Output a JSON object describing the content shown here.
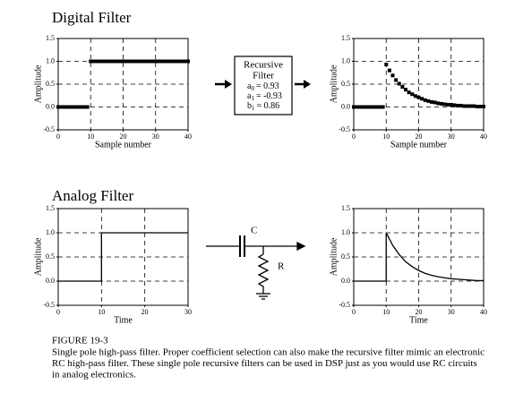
{
  "headings": [
    "Digital Filter",
    "Analog Filter"
  ],
  "filter_box": {
    "title": [
      "Recursive",
      "Filter"
    ],
    "coefficients": [
      {
        "symbol": "a",
        "subscript": "0",
        "text": "= 0.93"
      },
      {
        "symbol": "a",
        "subscript": "1",
        "text": "= -0.93"
      },
      {
        "symbol": "b",
        "subscript": "1",
        "text": "= 0.86"
      }
    ]
  },
  "circuit": {
    "capacitor": "C",
    "resistor": "R"
  },
  "caption": {
    "title": "FIGURE 19-3",
    "lines": [
      "Single pole high-pass filter.  Proper coefficient selection can also make the recursive filter mimic an electronic",
      "RC high-pass filter.  These single pole recursive filters can be used in DSP just as you would use RC circuits",
      "in analog electronics."
    ]
  },
  "chart_data": [
    {
      "type": "scatter",
      "xlabel": "Sample number",
      "ylabel": "Amplitude",
      "color": "#000000",
      "grid": true,
      "x": [
        0,
        1,
        2,
        3,
        4,
        5,
        6,
        7,
        8,
        9,
        10,
        11,
        12,
        13,
        14,
        15,
        16,
        17,
        18,
        19,
        20,
        21,
        22,
        23,
        24,
        25,
        26,
        27,
        28,
        29,
        30,
        31,
        32,
        33,
        34,
        35,
        36,
        37,
        38,
        39,
        40
      ],
      "values": [
        0,
        0,
        0,
        0,
        0,
        0,
        0,
        0,
        0,
        0,
        1,
        1,
        1,
        1,
        1,
        1,
        1,
        1,
        1,
        1,
        1,
        1,
        1,
        1,
        1,
        1,
        1,
        1,
        1,
        1,
        1,
        1,
        1,
        1,
        1,
        1,
        1,
        1,
        1,
        1,
        1
      ],
      "xlim": [
        0,
        40
      ],
      "xticks": [
        0,
        10,
        20,
        30,
        40
      ],
      "ylim": [
        -0.5,
        1.5
      ],
      "yticks": [
        -0.5,
        {
          "value": 0,
          "label": "0.0"
        },
        0.5,
        {
          "value": 1,
          "label": "1.0"
        },
        1.5
      ]
    },
    {
      "type": "scatter",
      "xlabel": "Sample number",
      "ylabel": "Amplitude",
      "color": "#000000",
      "grid": true,
      "x": [
        0,
        1,
        2,
        3,
        4,
        5,
        6,
        7,
        8,
        9,
        10,
        11,
        12,
        13,
        14,
        15,
        16,
        17,
        18,
        19,
        20,
        21,
        22,
        23,
        24,
        25,
        26,
        27,
        28,
        29,
        30,
        31,
        32,
        33,
        34,
        35,
        36,
        37,
        38,
        39,
        40
      ],
      "values": [
        0,
        0,
        0,
        0,
        0,
        0,
        0,
        0,
        0,
        0,
        0.93,
        0.8,
        0.69,
        0.59,
        0.51,
        0.44,
        0.38,
        0.32,
        0.28,
        0.24,
        0.21,
        0.18,
        0.15,
        0.13,
        0.11,
        0.1,
        0.08,
        0.07,
        0.06,
        0.05,
        0.05,
        0.04,
        0.03,
        0.03,
        0.02,
        0.02,
        0.02,
        0.02,
        0.01,
        0.01,
        0.01
      ],
      "xlim": [
        0,
        40
      ],
      "xticks": [
        0,
        10,
        20,
        30,
        40
      ],
      "ylim": [
        -0.5,
        1.5
      ],
      "yticks": [
        -0.5,
        {
          "value": 0,
          "label": "0.0"
        },
        0.5,
        {
          "value": 1,
          "label": "1.0"
        },
        1.5
      ]
    },
    {
      "type": "line",
      "xlabel": "Time",
      "ylabel": "Amplitude",
      "color": "#000000",
      "grid": true,
      "x": [
        0,
        10,
        10,
        30
      ],
      "values": [
        0,
        0,
        1,
        1
      ],
      "xlim": [
        0,
        30
      ],
      "xticks": [
        0,
        10,
        20,
        30
      ],
      "ylim": [
        -0.5,
        1.5
      ],
      "yticks": [
        -0.5,
        {
          "value": 0,
          "label": "0.0"
        },
        0.5,
        {
          "value": 1,
          "label": "1.0"
        },
        1.5
      ]
    },
    {
      "type": "line",
      "xlabel": "Time",
      "ylabel": "Amplitude",
      "color": "#000000",
      "grid": true,
      "x": [
        0,
        10,
        10,
        12,
        14,
        16,
        18,
        20,
        22,
        24,
        26,
        28,
        30,
        32,
        34,
        36,
        38,
        40
      ],
      "values": [
        0,
        0,
        1,
        0.74,
        0.55,
        0.4,
        0.3,
        0.22,
        0.16,
        0.12,
        0.09,
        0.07,
        0.05,
        0.04,
        0.03,
        0.02,
        0.01,
        0.01
      ],
      "xlim": [
        0,
        40
      ],
      "xticks": [
        0,
        10,
        20,
        30,
        40
      ],
      "ylim": [
        -0.5,
        1.5
      ],
      "yticks": [
        -0.5,
        {
          "value": 0,
          "label": "0.0"
        },
        0.5,
        {
          "value": 1,
          "label": "1.0"
        },
        1.5
      ]
    }
  ]
}
